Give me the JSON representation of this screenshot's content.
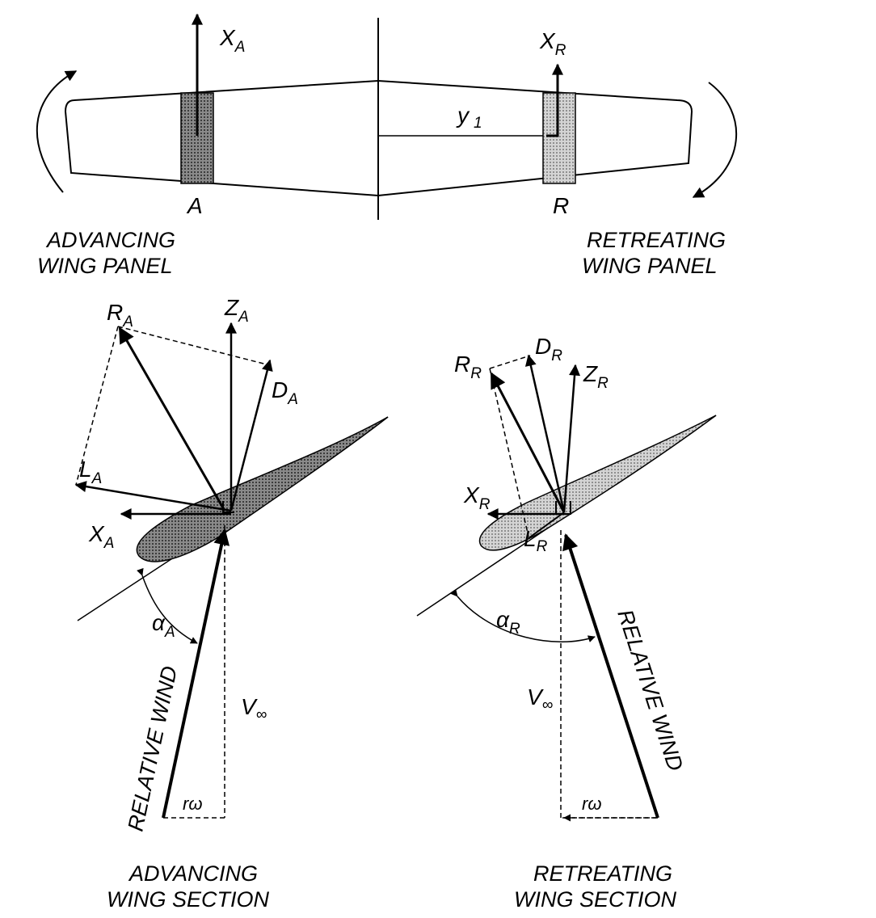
{
  "planform": {
    "x_a": {
      "main": "X",
      "sub": "A"
    },
    "x_r": {
      "main": "X",
      "sub": "R"
    },
    "y1": {
      "main": "y",
      "sub": "1"
    },
    "label_a": "A",
    "label_r": "R",
    "advancing_panel": [
      "ADVANCING",
      "WING PANEL"
    ],
    "retreating_panel": [
      "RETREATING",
      "WING PANEL"
    ]
  },
  "advancing_section": {
    "r": {
      "main": "R",
      "sub": "A"
    },
    "z": {
      "main": "Z",
      "sub": "A"
    },
    "d": {
      "main": "D",
      "sub": "A"
    },
    "l": {
      "main": "L",
      "sub": "A"
    },
    "x": {
      "main": "X",
      "sub": "A"
    },
    "alpha": {
      "main": "α",
      "sub": "A"
    },
    "v_inf": {
      "main": "V",
      "sub": "∞"
    },
    "r_omega": "rω",
    "relative_wind": "RELATIVE WIND",
    "caption": [
      "ADVANCING",
      "WING SECTION"
    ]
  },
  "retreating_section": {
    "r": {
      "main": "R",
      "sub": "R"
    },
    "z": {
      "main": "Z",
      "sub": "R"
    },
    "d": {
      "main": "D",
      "sub": "R"
    },
    "l": {
      "main": "L",
      "sub": "R"
    },
    "x": {
      "main": "X",
      "sub": "R"
    },
    "alpha": {
      "main": "α",
      "sub": "R"
    },
    "v_inf": {
      "main": "V",
      "sub": "∞"
    },
    "r_omega": "rω",
    "relative_wind": "RELATIVE WIND",
    "caption": [
      "RETREATING",
      "WING SECTION"
    ]
  },
  "colors": {
    "ink": "#000000",
    "dark_fill": "#6f6f6f",
    "light_fill": "#bdbdbd"
  }
}
